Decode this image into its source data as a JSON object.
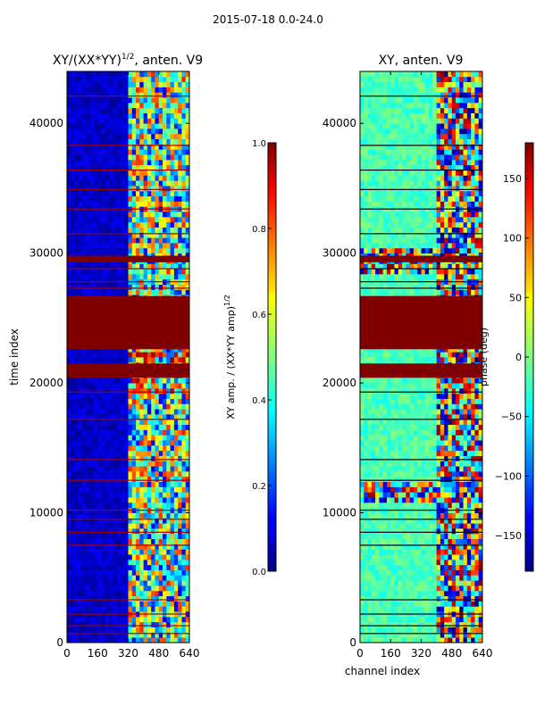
{
  "figure": {
    "suptitle": "2015-07-18 0.0-24.0"
  },
  "chart_data": [
    {
      "type": "heatmap",
      "title": "XY/(XX*YY)^1/2, anten. V9",
      "title_base": "XY/(XX*YY)",
      "title_sup": "1/2",
      "title_tail": ", anten. V9",
      "xlabel": "",
      "ylabel": "time index",
      "xlim": [
        0,
        640
      ],
      "ylim": [
        0,
        44000
      ],
      "xticks": [
        0,
        160,
        320,
        480,
        640
      ],
      "yticks": [
        0,
        10000,
        20000,
        30000,
        40000
      ],
      "colorbar": {
        "label": "XY amp. / (XX*YY amp)^1/2",
        "label_base": "XY amp. / (XX*YY amp)",
        "label_sup": "1/2",
        "vmin": 0.0,
        "vmax": 1.0,
        "ticks": [
          0.0,
          0.2,
          0.4,
          0.6,
          0.8,
          1.0
        ],
        "tick_labels": [
          "0.0",
          "0.2",
          "0.4",
          "0.6",
          "0.8",
          "1.0"
        ],
        "colormap": "jet"
      },
      "flagged_time_ranges": [
        [
          20400,
          21500
        ],
        [
          22600,
          26700
        ],
        [
          29300,
          29800
        ]
      ],
      "thin_flag_times": [
        700,
        1300,
        2200,
        3300,
        7500,
        8500,
        9500,
        10200,
        12500,
        14100,
        17200,
        19300,
        27300,
        27800,
        28800,
        31500,
        33400,
        34900,
        36400,
        38300,
        42100
      ],
      "active_channel_range": [
        330,
        640
      ],
      "description_values": "low amplitude (~0.05) below channel 330, patchy 0.3-0.9 above"
    },
    {
      "type": "heatmap",
      "title": "XY, anten. V9",
      "xlabel": "channel index",
      "ylabel": "",
      "xlim": [
        0,
        640
      ],
      "ylim": [
        0,
        44000
      ],
      "xticks": [
        0,
        160,
        320,
        480,
        640
      ],
      "yticks": [
        0,
        10000,
        20000,
        30000,
        40000
      ],
      "colorbar": {
        "label": "phase (deg)",
        "vmin": -180,
        "vmax": 180,
        "ticks": [
          -150,
          -100,
          -50,
          0,
          50,
          100,
          150
        ],
        "tick_labels": [
          "−150",
          "−100",
          "−50",
          "0",
          "50",
          "100",
          "150"
        ],
        "colormap": "jet"
      },
      "flagged_time_ranges": [
        [
          20400,
          21500
        ],
        [
          22600,
          26700
        ],
        [
          29300,
          29800
        ]
      ],
      "thin_flag_times": [
        700,
        1300,
        2200,
        3300,
        7500,
        8500,
        9500,
        10200,
        12500,
        14100,
        17200,
        19300,
        27300,
        27800,
        28800,
        31500,
        33400,
        34900,
        36400,
        38300,
        42100
      ],
      "noisy_time_ranges": [
        [
          10800,
          12300
        ],
        [
          28500,
          30200
        ]
      ],
      "active_channel_range": [
        400,
        640
      ],
      "description_values": "phase near 0 deg (cyan-green) at low channels, mixed -180..180 above channel 400"
    }
  ]
}
